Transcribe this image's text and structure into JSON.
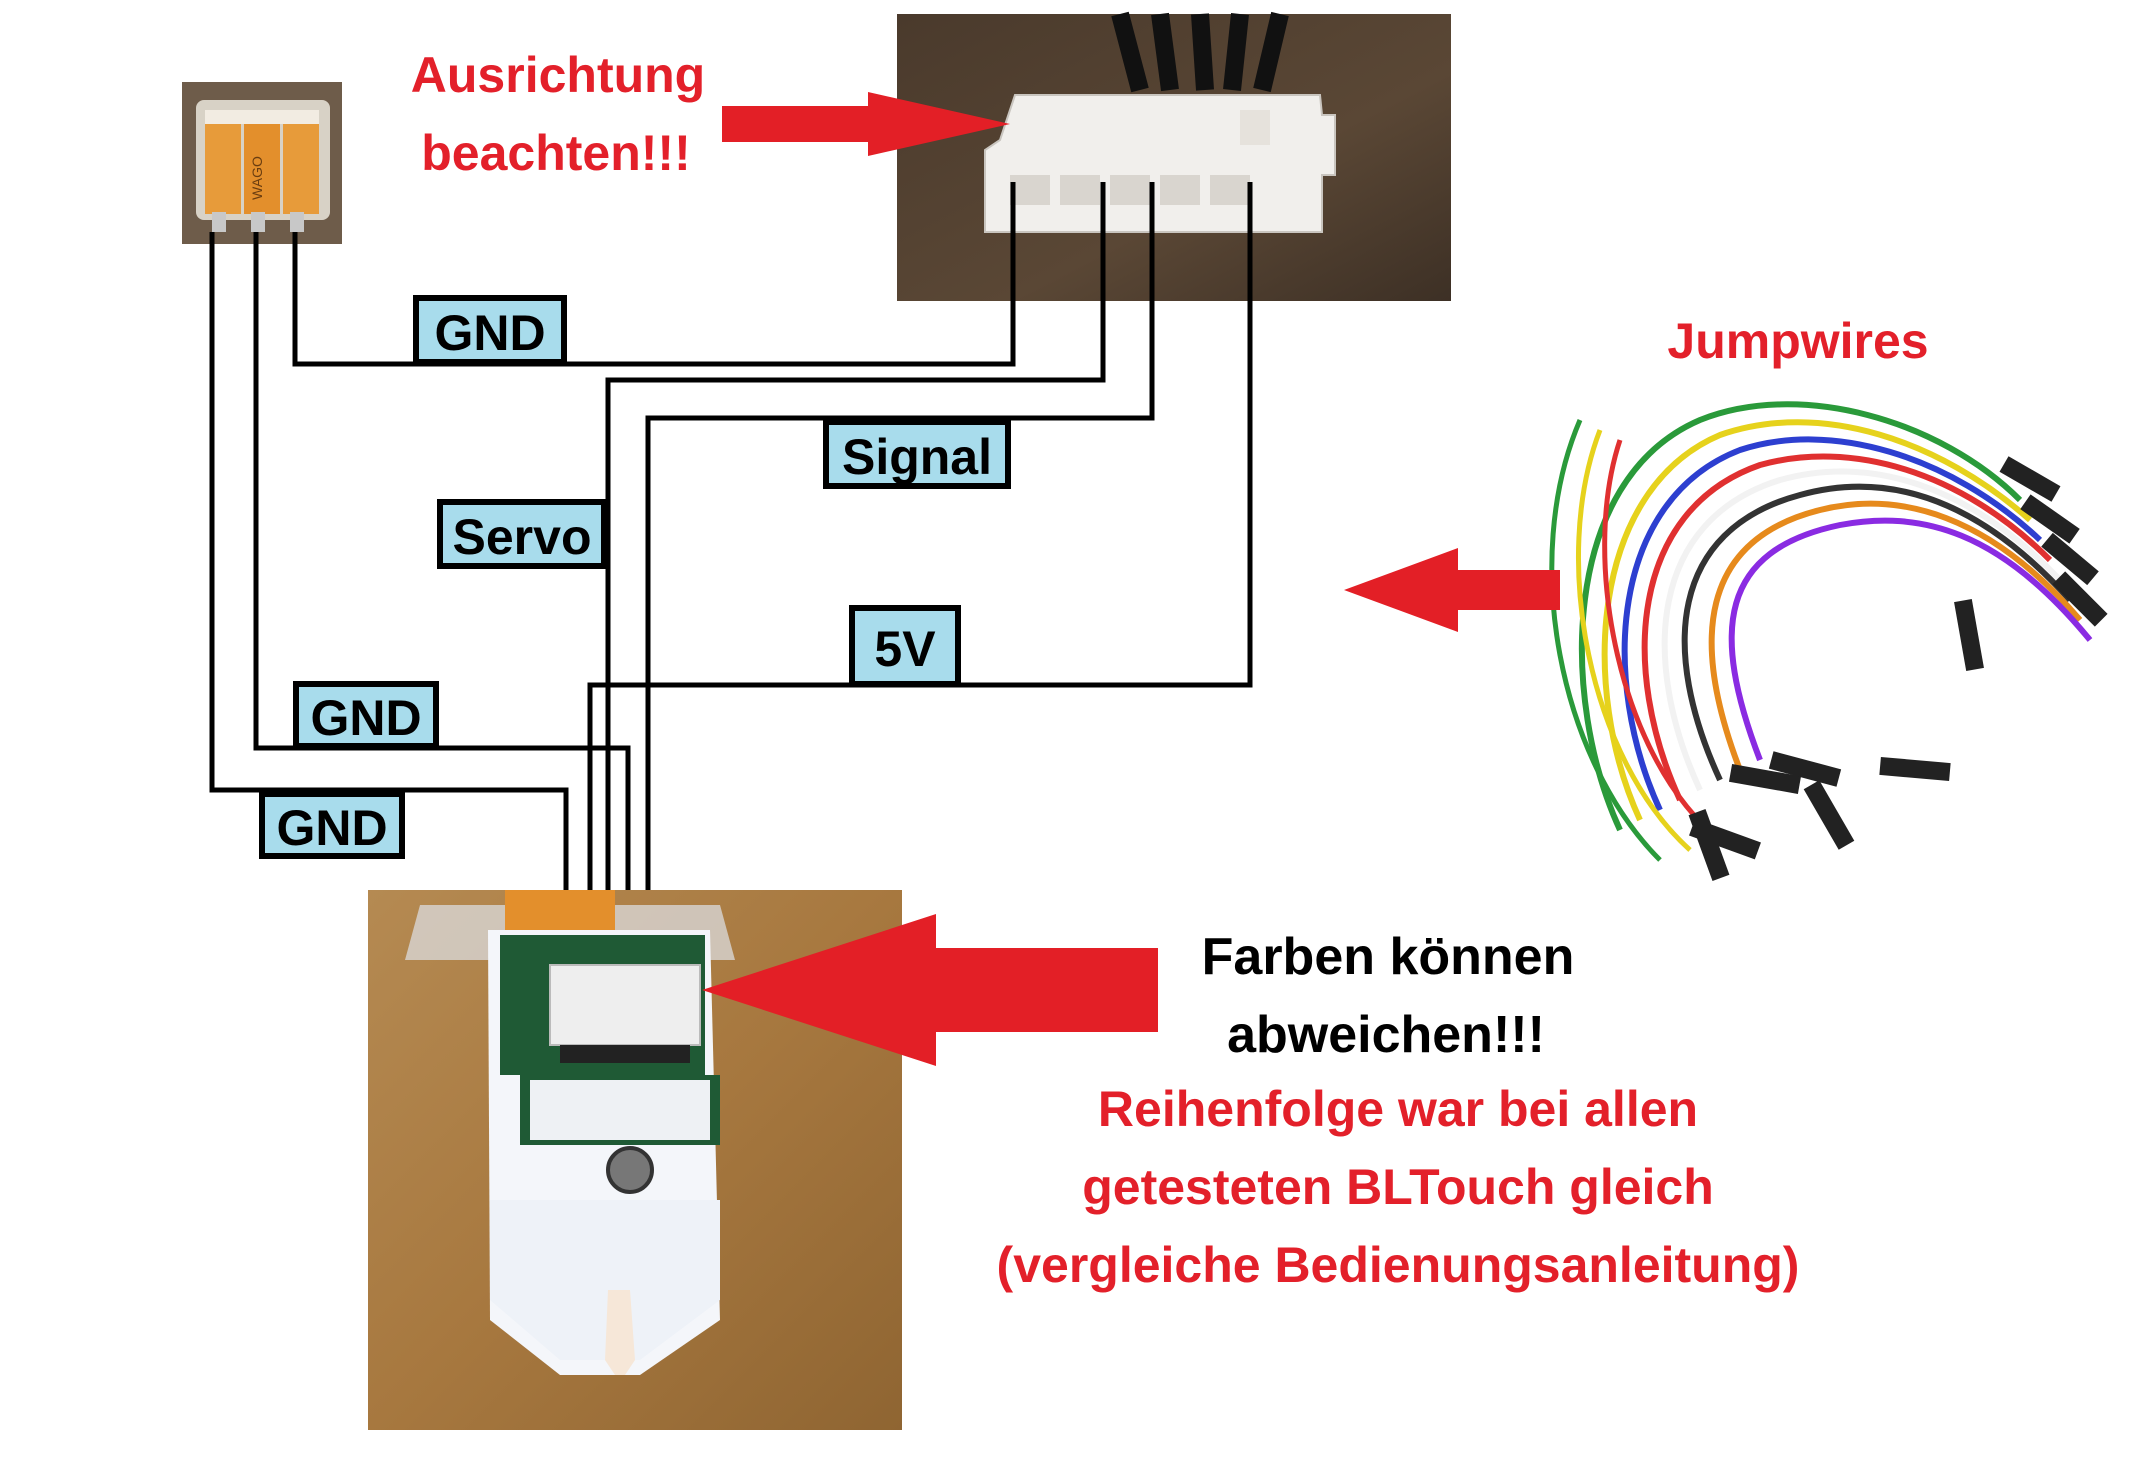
{
  "labels": {
    "gnd_top": "GND",
    "signal": "Signal",
    "servo": "Servo",
    "five_v": "5V",
    "gnd_mid": "GND",
    "gnd_bottom": "GND"
  },
  "annotations": {
    "orientation_line1": "Ausrichtung",
    "orientation_line2": "beachten!!!",
    "jumpwires": "Jumpwires",
    "colors_line1": "Farben können",
    "colors_line2": "abweichen!!!",
    "order_line1": "Reihenfolge war bei allen",
    "order_line2": "getesteten BLTouch gleich",
    "order_line3": "(vergleiche Bedienungsanleitung)"
  },
  "connector_marking": "WAGO",
  "colors": {
    "arrow": "#e31f26",
    "label_fill": "#a8dcec",
    "text_red": "#e3202a",
    "wire": "#000000"
  }
}
